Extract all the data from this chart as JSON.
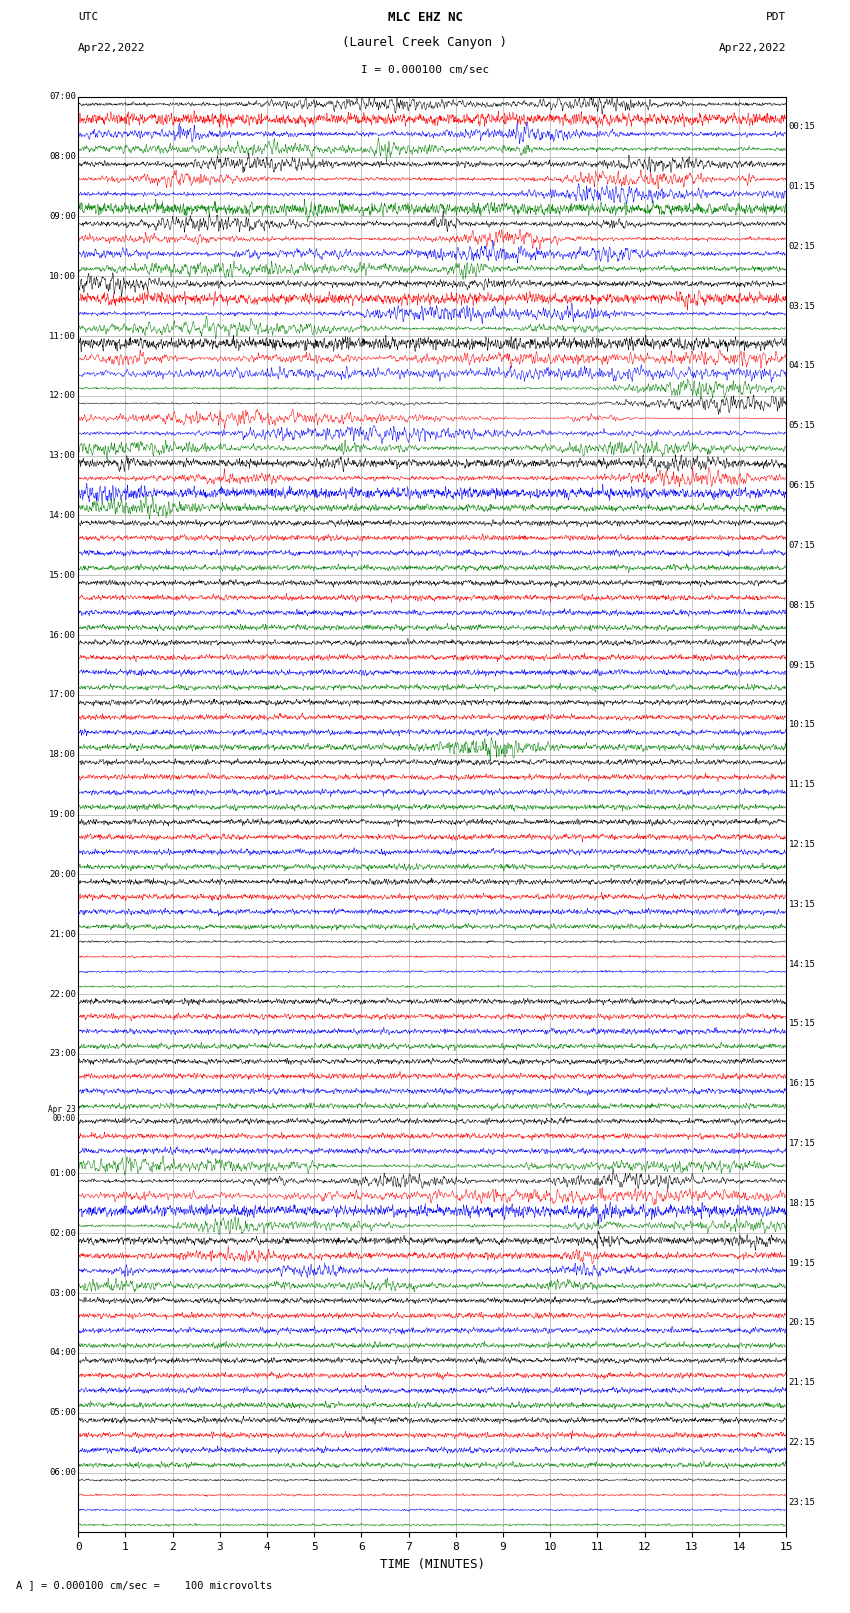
{
  "title_line1": "MLC EHZ NC",
  "title_line2": "(Laurel Creek Canyon )",
  "scale_text": "I = 0.000100 cm/sec",
  "utc_label": "UTC",
  "utc_date": "Apr22,2022",
  "pdt_label": "PDT",
  "pdt_date": "Apr22,2022",
  "xlabel": "TIME (MINUTES)",
  "footer_text": "A ] = 0.000100 cm/sec =    100 microvolts",
  "left_times_utc": [
    "07:00",
    "08:00",
    "09:00",
    "10:00",
    "11:00",
    "12:00",
    "13:00",
    "14:00",
    "15:00",
    "16:00",
    "17:00",
    "18:00",
    "19:00",
    "20:00",
    "21:00",
    "22:00",
    "23:00",
    "Apr 23\n00:00",
    "01:00",
    "02:00",
    "03:00",
    "04:00",
    "05:00",
    "06:00"
  ],
  "right_times_pdt": [
    "00:15",
    "01:15",
    "02:15",
    "03:15",
    "04:15",
    "05:15",
    "06:15",
    "07:15",
    "08:15",
    "09:15",
    "10:15",
    "11:15",
    "12:15",
    "13:15",
    "14:15",
    "15:15",
    "16:15",
    "17:15",
    "18:15",
    "19:15",
    "20:15",
    "21:15",
    "22:15",
    "23:15"
  ],
  "num_rows": 24,
  "colors": [
    "black",
    "red",
    "blue",
    "green"
  ],
  "bg_color": "#ffffff",
  "line_width": 0.35,
  "x_ticks": [
    0,
    1,
    2,
    3,
    4,
    5,
    6,
    7,
    8,
    9,
    10,
    11,
    12,
    13,
    14,
    15
  ],
  "x_lim": [
    0,
    15
  ]
}
